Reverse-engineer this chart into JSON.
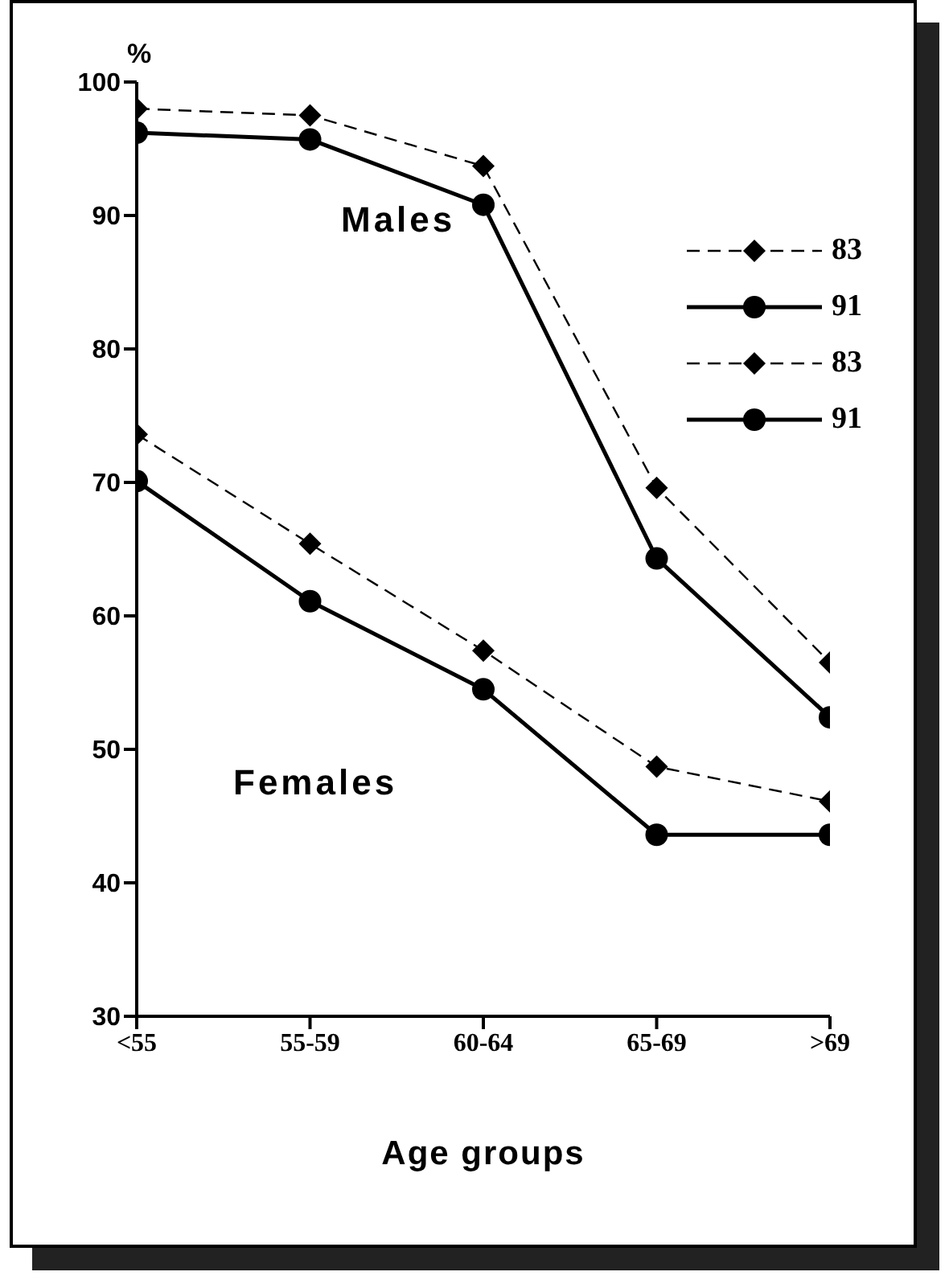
{
  "chart_data": {
    "type": "line",
    "xlabel": "Age groups",
    "ylabel": "%",
    "categories": [
      "<55",
      "55-59",
      "60-64",
      "65-69",
      ">69"
    ],
    "ylim": [
      30,
      100
    ],
    "yticks": [
      30,
      40,
      50,
      60,
      70,
      80,
      90,
      100
    ],
    "grid": false,
    "legend": "top right",
    "annotations": [
      "Males",
      "Females"
    ],
    "series": [
      {
        "name": "83",
        "color": "#000000",
        "marker": "diamond",
        "line_style": "dashed",
        "values": [
          98.0,
          97.5,
          93.7,
          69.6,
          56.5
        ]
      },
      {
        "name": "91",
        "color": "#000000",
        "marker": "circle",
        "line_style": "solid",
        "values": [
          96.2,
          95.7,
          90.8,
          64.3,
          52.4
        ]
      },
      {
        "name": "83",
        "color": "#000000",
        "marker": "diamond",
        "line_style": "dashed",
        "values": [
          73.6,
          65.4,
          57.4,
          48.7,
          46.1
        ]
      },
      {
        "name": "91",
        "color": "#000000",
        "marker": "circle",
        "line_style": "solid",
        "values": [
          70.1,
          61.1,
          54.5,
          43.6,
          43.6
        ]
      }
    ]
  }
}
